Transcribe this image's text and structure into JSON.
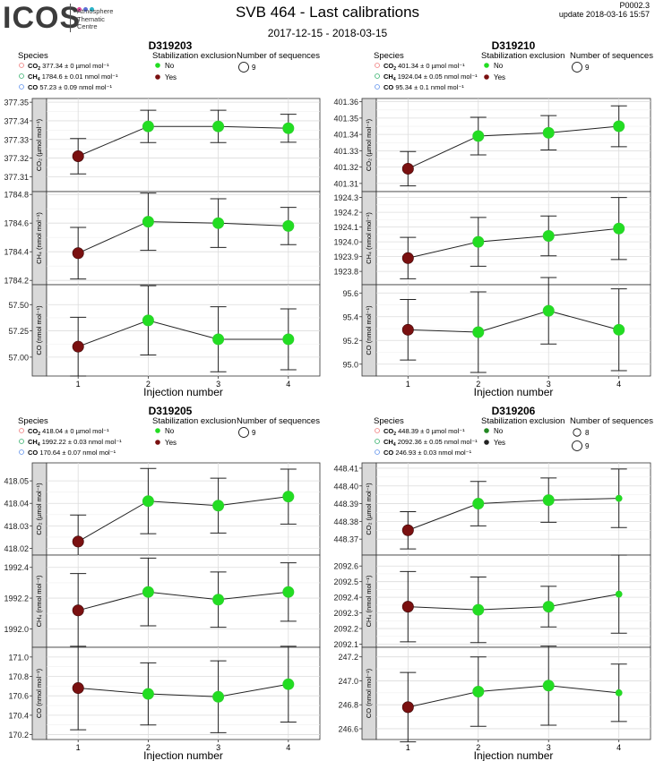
{
  "header": {
    "logo": "ICOS",
    "logo_sub": [
      "Atmosphere",
      "Thematic",
      "Centre"
    ],
    "logo_dot_colors": [
      "#e0479b",
      "#5b6fd6",
      "#2bb3c8"
    ],
    "title": "SVB 464 - Last calibrations",
    "date_range": "2017-12-15 - 2018-03-15",
    "page_code": "P0002.3",
    "update": "update  2018-03-16 15:57"
  },
  "colors": {
    "no": "#22dd22",
    "yes": "#7a1010",
    "strip": "#d9d9d9",
    "co2_ring": "#f08080",
    "ch4_ring": "#3cb371",
    "co_ring": "#6495ed"
  },
  "legend_titles": {
    "species": "Species",
    "stab": "Stabilization exclusion",
    "nseq": "Number of sequences",
    "no": "No",
    "yes": "Yes"
  },
  "xlabel": "Injection number",
  "chart_data": [
    {
      "type": "scatter",
      "title": "D319203",
      "species_legend": [
        {
          "name": "CO",
          "sub": "2",
          "text": "377.34 ± 0 µmol mol⁻¹"
        },
        {
          "name": "CH",
          "sub": "4",
          "text": "1784.6 ± 0.01 nmol mol⁻¹"
        },
        {
          "name": "CO",
          "sub": "",
          "text": "57.23 ± 0.09 nmol mol⁻¹"
        }
      ],
      "nseq_legend": [
        "9"
      ],
      "x": [
        1,
        2,
        3,
        4
      ],
      "panels": [
        {
          "strip_label": "CO₂ (µmol mol⁻¹)",
          "ylim": [
            377.302,
            377.352
          ],
          "ticks": [
            377.31,
            377.32,
            377.33,
            377.34,
            377.35
          ],
          "tick_labels": [
            "377.31",
            "377.32",
            "377.33",
            "377.34",
            "377.35"
          ],
          "y": [
            377.321,
            377.337,
            377.337,
            377.336
          ],
          "err": [
            0.0095,
            0.0087,
            0.0087,
            0.0075
          ],
          "excluded": [
            true,
            false,
            false,
            false
          ],
          "nseq": [
            9,
            9,
            9,
            9
          ]
        },
        {
          "strip_label": "CH₄ (nmol mol⁻¹)",
          "ylim": [
            1784.17,
            1784.82
          ],
          "ticks": [
            1784.2,
            1784.4,
            1784.6,
            1784.8
          ],
          "tick_labels": [
            "1784.2",
            "1784.4",
            "1784.6",
            "1784.8"
          ],
          "y": [
            1784.39,
            1784.61,
            1784.6,
            1784.58
          ],
          "err": [
            0.18,
            0.2,
            0.17,
            0.13
          ],
          "excluded": [
            true,
            false,
            false,
            false
          ],
          "nseq": [
            9,
            9,
            9,
            9
          ]
        },
        {
          "strip_label": "CO (nmol mol⁻¹)",
          "ylim": [
            56.82,
            57.69
          ],
          "ticks": [
            57.0,
            57.25,
            57.5
          ],
          "tick_labels": [
            "57.00",
            "57.25",
            "57.50"
          ],
          "y": [
            57.1,
            57.35,
            57.17,
            57.17
          ],
          "err": [
            0.28,
            0.33,
            0.31,
            0.29
          ],
          "excluded": [
            true,
            false,
            false,
            false
          ],
          "nseq": [
            9,
            9,
            9,
            9
          ]
        }
      ]
    },
    {
      "type": "scatter",
      "title": "D319210",
      "species_legend": [
        {
          "name": "CO",
          "sub": "2",
          "text": "401.34 ± 0 µmol mol⁻¹"
        },
        {
          "name": "CH",
          "sub": "4",
          "text": "1924.04 ± 0.05 nmol mol⁻¹"
        },
        {
          "name": "CO",
          "sub": "",
          "text": "95.34 ± 0.1 nmol mol⁻¹"
        }
      ],
      "nseq_legend": [
        "9"
      ],
      "x": [
        1,
        2,
        3,
        4
      ],
      "panels": [
        {
          "strip_label": "CO₂ (µmol mol⁻¹)",
          "ylim": [
            401.305,
            401.362
          ],
          "ticks": [
            401.31,
            401.32,
            401.33,
            401.34,
            401.35,
            401.36
          ],
          "tick_labels": [
            "401.31",
            "401.32",
            "401.33",
            "401.34",
            "401.35",
            "401.36"
          ],
          "y": [
            401.319,
            401.339,
            401.341,
            401.345
          ],
          "err": [
            0.0105,
            0.0115,
            0.0105,
            0.0125
          ],
          "excluded": [
            true,
            false,
            false,
            false
          ],
          "nseq": [
            9,
            9,
            9,
            9
          ]
        },
        {
          "strip_label": "CH₄ (nmol mol⁻¹)",
          "ylim": [
            1923.71,
            1924.34
          ],
          "ticks": [
            1923.8,
            1923.9,
            1924.0,
            1924.1,
            1924.2,
            1924.3
          ],
          "tick_labels": [
            "1923.8",
            "1923.9",
            "1924.0",
            "1924.1",
            "1924.2",
            "1924.3"
          ],
          "y": [
            1923.89,
            1924.0,
            1924.04,
            1924.09
          ],
          "err": [
            0.14,
            0.165,
            0.135,
            0.21
          ],
          "excluded": [
            true,
            false,
            false,
            false
          ],
          "nseq": [
            9,
            9,
            9,
            9
          ]
        },
        {
          "strip_label": "CO (nmol mol⁻¹)",
          "ylim": [
            94.9,
            95.67
          ],
          "ticks": [
            95.0,
            95.2,
            95.4,
            95.6
          ],
          "tick_labels": [
            "95.0",
            "95.2",
            "95.4",
            "95.6"
          ],
          "y": [
            95.29,
            95.27,
            95.45,
            95.29
          ],
          "err": [
            0.255,
            0.34,
            0.28,
            0.345
          ],
          "excluded": [
            true,
            false,
            false,
            false
          ],
          "nseq": [
            9,
            9,
            9,
            9
          ]
        }
      ]
    },
    {
      "type": "scatter",
      "title": "D319205",
      "species_legend": [
        {
          "name": "CO",
          "sub": "2",
          "text": "418.04 ± 0 µmol mol⁻¹"
        },
        {
          "name": "CH",
          "sub": "4",
          "text": "1992.22 ± 0.03 nmol mol⁻¹"
        },
        {
          "name": "CO",
          "sub": "",
          "text": "170.64 ± 0.07 nmol mol⁻¹"
        }
      ],
      "nseq_legend": [
        "9"
      ],
      "x": [
        1,
        2,
        3,
        4
      ],
      "panels": [
        {
          "strip_label": "CO₂ (µmol mol⁻¹)",
          "ylim": [
            418.017,
            418.058
          ],
          "ticks": [
            418.02,
            418.03,
            418.04,
            418.05
          ],
          "tick_labels": [
            "418.02",
            "418.03",
            "418.04",
            "418.05"
          ],
          "y": [
            418.023,
            418.041,
            418.039,
            418.043
          ],
          "err": [
            0.0118,
            0.0145,
            0.0122,
            0.0122
          ],
          "excluded": [
            true,
            false,
            false,
            false
          ],
          "nseq": [
            9,
            9,
            9,
            9
          ]
        },
        {
          "strip_label": "CH₄ (nmol mol⁻¹)",
          "ylim": [
            1991.88,
            1992.48
          ],
          "ticks": [
            1992.0,
            1992.2,
            1992.4
          ],
          "tick_labels": [
            "1992.0",
            "1992.2",
            "1992.4"
          ],
          "y": [
            1992.12,
            1992.24,
            1992.19,
            1992.24
          ],
          "err": [
            0.24,
            0.22,
            0.18,
            0.19
          ],
          "excluded": [
            true,
            false,
            false,
            false
          ],
          "nseq": [
            9,
            9,
            9,
            9
          ]
        },
        {
          "strip_label": "CO (nmol mol⁻¹)",
          "ylim": [
            170.15,
            171.1
          ],
          "ticks": [
            170.2,
            170.4,
            170.6,
            170.8,
            171.0
          ],
          "tick_labels": [
            "170.2",
            "170.4",
            "170.6",
            "170.8",
            "171.0"
          ],
          "y": [
            170.68,
            170.62,
            170.59,
            170.72
          ],
          "err": [
            0.43,
            0.32,
            0.37,
            0.39
          ],
          "excluded": [
            true,
            false,
            false,
            false
          ],
          "nseq": [
            9,
            9,
            9,
            9
          ]
        }
      ]
    },
    {
      "type": "scatter",
      "title": "D319206",
      "species_legend": [
        {
          "name": "CO",
          "sub": "2",
          "text": "448.39 ± 0 µmol mol⁻¹"
        },
        {
          "name": "CH",
          "sub": "4",
          "text": "2092.36 ± 0.05 nmol mol⁻¹"
        },
        {
          "name": "CO",
          "sub": "",
          "text": "246.93 ± 0.03 nmol mol⁻¹"
        }
      ],
      "nseq_legend": [
        "8",
        "9"
      ],
      "x": [
        1,
        2,
        3,
        4
      ],
      "panels": [
        {
          "strip_label": "CO₂ (µmol mol⁻¹)",
          "ylim": [
            448.361,
            448.413
          ],
          "ticks": [
            448.37,
            448.38,
            448.39,
            448.4,
            448.41
          ],
          "tick_labels": [
            "448.37",
            "448.38",
            "448.39",
            "448.40",
            "448.41"
          ],
          "y": [
            448.375,
            448.39,
            448.392,
            448.393
          ],
          "err": [
            0.0105,
            0.0125,
            0.0125,
            0.0165
          ],
          "excluded": [
            true,
            false,
            false,
            false
          ],
          "nseq": [
            9,
            9,
            9,
            8
          ]
        },
        {
          "strip_label": "CH₄ (nmol mol⁻¹)",
          "ylim": [
            2092.08,
            2092.67
          ],
          "ticks": [
            2092.1,
            2092.2,
            2092.3,
            2092.4,
            2092.5,
            2092.6
          ],
          "tick_labels": [
            "2092.1",
            "2092.2",
            "2092.3",
            "2092.4",
            "2092.5",
            "2092.6"
          ],
          "y": [
            2092.34,
            2092.32,
            2092.34,
            2092.42
          ],
          "err": [
            0.225,
            0.21,
            0.13,
            0.25
          ],
          "excluded": [
            true,
            false,
            false,
            false
          ],
          "nseq": [
            9,
            9,
            9,
            8
          ]
        },
        {
          "strip_label": "CO (nmol mol⁻¹)",
          "ylim": [
            246.51,
            247.28
          ],
          "ticks": [
            246.6,
            246.8,
            247.0,
            247.2
          ],
          "tick_labels": [
            "246.6",
            "246.8",
            "247.0",
            "247.2"
          ],
          "y": [
            246.78,
            246.91,
            246.96,
            246.9
          ],
          "err": [
            0.29,
            0.29,
            0.33,
            0.24
          ],
          "excluded": [
            true,
            false,
            false,
            false
          ],
          "nseq": [
            9,
            9,
            9,
            8
          ]
        }
      ]
    }
  ]
}
